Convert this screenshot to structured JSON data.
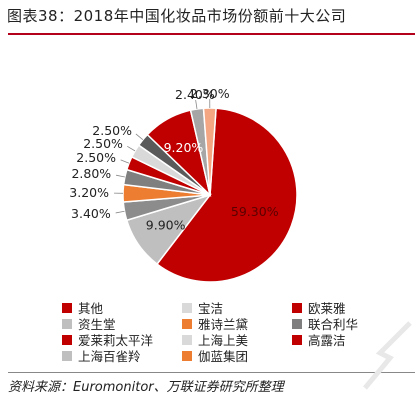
{
  "title": "图表38：2018年中国化妆品市场份额前十大公司",
  "source": "资料来源：Euromonitor、万联证券研究所整理",
  "chart_data": {
    "type": "pie",
    "title": "",
    "labels": [
      "其他",
      "上海百雀羚",
      "爱莱莉太平洋",
      "资生堂",
      "宝洁",
      "雅诗兰黛",
      "上海上美",
      "伽蓝集团",
      "欧莱雅",
      "联合利华",
      "高露洁"
    ],
    "values": [
      59.3,
      9.9,
      3.4,
      3.2,
      2.8,
      2.5,
      2.5,
      2.5,
      9.2,
      2.4,
      2.3
    ],
    "value_labels": [
      "59.30%",
      "9.90%",
      "3.40%",
      "3.20%",
      "2.80%",
      "2.50%",
      "2.50%",
      "2.50%",
      "9.20%",
      "2.40%",
      "2.30%"
    ],
    "colors": [
      "#c00000",
      "#bfbfbf",
      "#8c8c8c",
      "#ed7d31",
      "#7f7f7f",
      "#c00000",
      "#d9d9d9",
      "#5a5a5a",
      "#c00000",
      "#a6a6a6",
      "#f4a582"
    ],
    "legend": [
      {
        "label": "其他",
        "color": "#c00000"
      },
      {
        "label": "宝洁",
        "color": "#d9d9d9"
      },
      {
        "label": "欧莱雅",
        "color": "#c00000"
      },
      {
        "label": "资生堂",
        "color": "#bfbfbf"
      },
      {
        "label": "雅诗兰黛",
        "color": "#ed7d31"
      },
      {
        "label": "联合利华",
        "color": "#7f7f7f"
      },
      {
        "label": "爱莱莉太平洋",
        "color": "#c00000"
      },
      {
        "label": "上海上美",
        "color": "#d9d9d9"
      },
      {
        "label": "高露洁",
        "color": "#c00000"
      },
      {
        "label": "上海百雀羚",
        "color": "#bfbfbf"
      },
      {
        "label": "伽蓝集团",
        "color": "#ed7d31"
      }
    ],
    "legend_placement": "bottom"
  }
}
